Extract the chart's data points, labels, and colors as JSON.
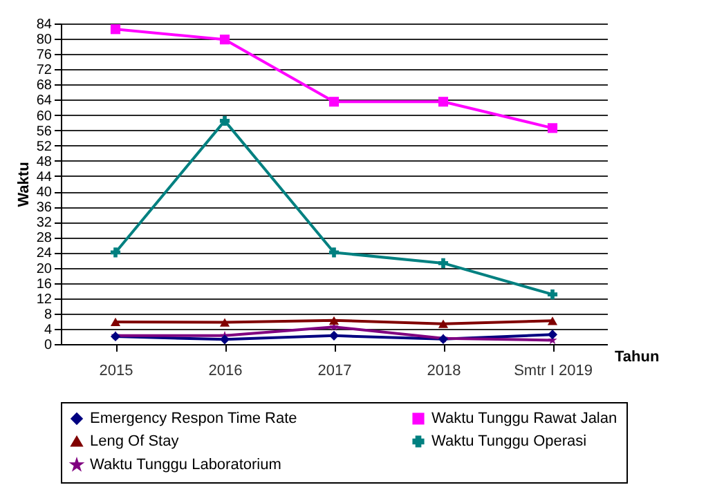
{
  "chart_data": {
    "type": "line",
    "xlabel": "Tahun",
    "ylabel": "Waktu",
    "categories": [
      "2015",
      "2016",
      "2017",
      "2018",
      "Smtr I 2019"
    ],
    "series": [
      {
        "name": "Emergency Respon Time Rate",
        "color": "#000080",
        "marker": "diamond",
        "values": [
          2,
          1.2,
          2.2,
          1.3,
          2.5
        ]
      },
      {
        "name": "Waktu Tunggu Rawat Jalan",
        "color": "#ff00ff",
        "marker": "square",
        "values": [
          82.5,
          79.8,
          63.5,
          63.5,
          56.6
        ]
      },
      {
        "name": "Leng Of Stay",
        "color": "#800000",
        "marker": "triangle",
        "values": [
          5.8,
          5.7,
          6.2,
          5.3,
          6.1
        ]
      },
      {
        "name": "Waktu Tunggu Operasi",
        "color": "#008080",
        "marker": "cross",
        "values": [
          24,
          58.5,
          24,
          21.2,
          13
        ]
      },
      {
        "name": "Waktu Tunggu Laboratorium",
        "color": "#800080",
        "marker": "star",
        "values": [
          2.2,
          2.2,
          4.5,
          1.5,
          1
        ]
      }
    ],
    "ylim": [
      0,
      84
    ],
    "yticks": [
      0,
      4,
      8,
      12,
      16,
      20,
      24,
      28,
      32,
      36,
      40,
      44,
      48,
      52,
      56,
      60,
      64,
      68,
      72,
      76,
      80,
      84
    ],
    "grid": "y",
    "legend": "bottom"
  }
}
